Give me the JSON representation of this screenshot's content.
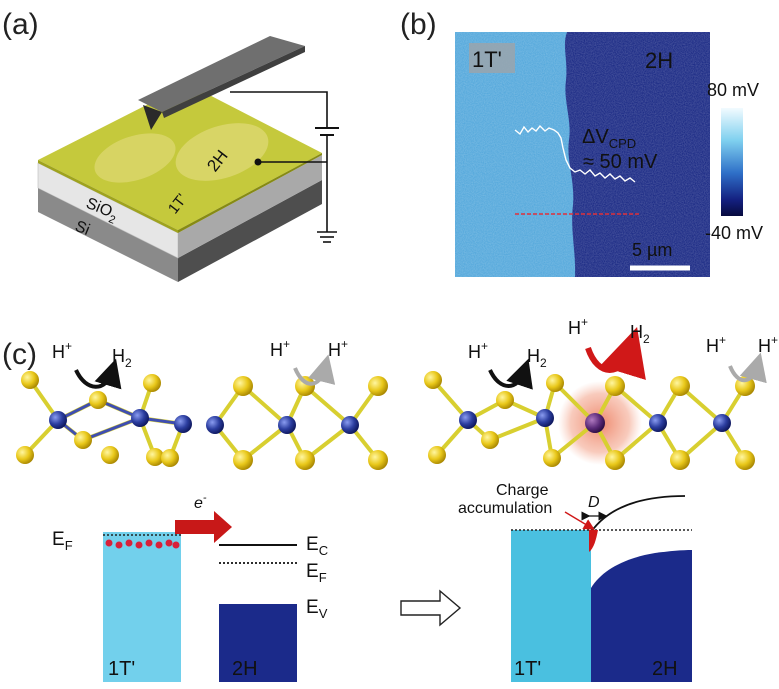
{
  "panels": {
    "a": "(a)",
    "b": "(b)",
    "c": "(c)"
  },
  "panel_a": {
    "region_2h": "2H",
    "region_1t": "1T'",
    "layer_sio2": "SiO",
    "layer_sio2_sub": "2",
    "layer_si": "Si"
  },
  "panel_b": {
    "label_1t": "1T'",
    "label_2h": "2H",
    "colorbar_max": "80 mV",
    "colorbar_min": "-40 mV",
    "delta_prefix": "ΔV",
    "delta_sub": "CPD",
    "delta_value": "≈ 50 mV",
    "scalebar": "5 µm"
  },
  "panel_c": {
    "reaction_hplus": "H",
    "reaction_plus": "+",
    "reaction_h2": "H",
    "reaction_h2_sub": "2",
    "electron": "e",
    "electron_sup": "-",
    "ef": "E",
    "ef_sub": "F",
    "ec": "E",
    "ec_sub": "C",
    "ev": "E",
    "ev_sub": "V",
    "bar_1t": "1T'",
    "bar_2h": "2H",
    "charge_line1": "Charge",
    "charge_line2": "accumulation",
    "depletion": "D"
  },
  "colors": {
    "film": "#c8cc3c",
    "film_dark": "#a9ad2c",
    "light_blue": "#72d0ec",
    "navy": "#1b2a8a",
    "sulfur": "#e9d21b",
    "metal": "#2c3ea0",
    "red": "#d01818"
  }
}
